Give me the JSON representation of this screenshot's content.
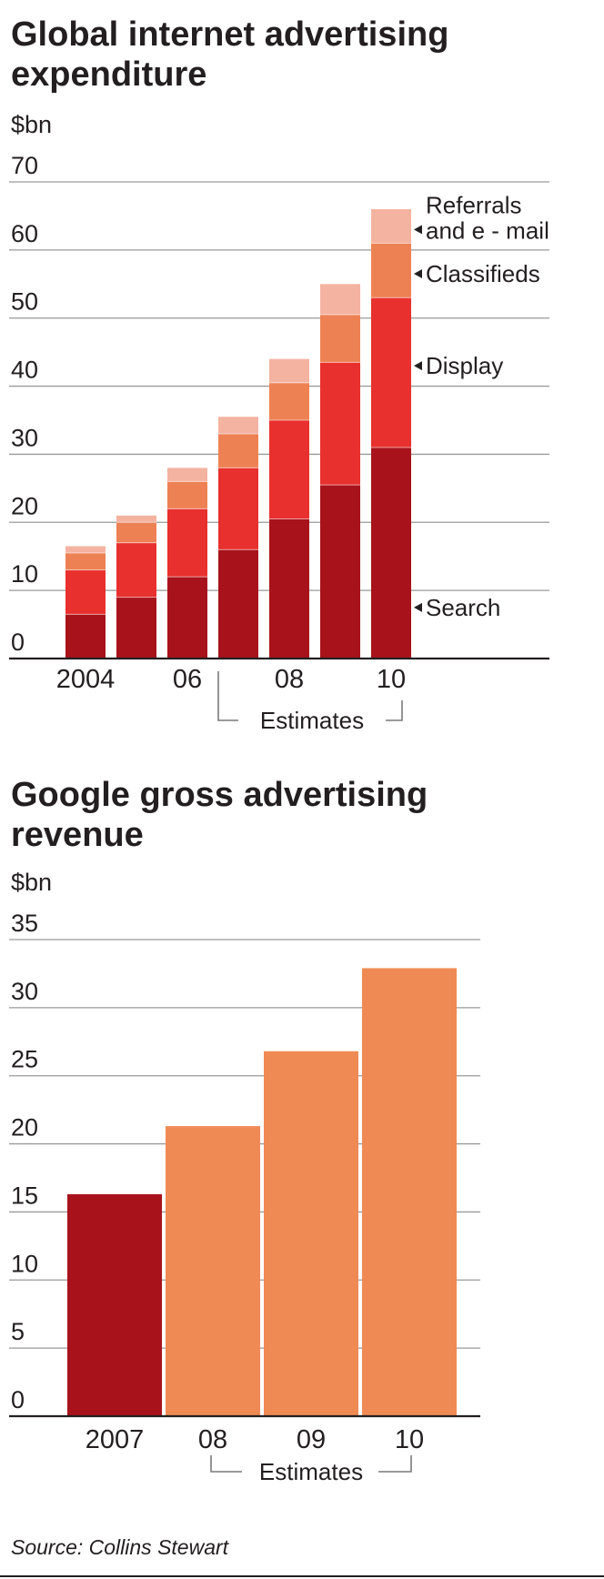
{
  "chart_data": [
    {
      "type": "bar",
      "stacked": true,
      "title": "Global internet advertising expenditure",
      "ylabel": "$bn",
      "ylim": [
        0,
        70
      ],
      "yticks": [
        0,
        10,
        20,
        30,
        40,
        50,
        60,
        70
      ],
      "grid": true,
      "categories": [
        "2004",
        "2005",
        "2006",
        "2007",
        "2008",
        "2009",
        "2010"
      ],
      "tick_labels": [
        "2004",
        "",
        "06",
        "",
        "08",
        "",
        "10"
      ],
      "estimates_label": "Estimates",
      "estimates_from": "2007",
      "series": [
        {
          "name": "Search",
          "color": "#a8131b",
          "values": [
            6.5,
            9,
            12,
            16,
            20.5,
            25.5,
            31
          ]
        },
        {
          "name": "Display",
          "color": "#e8302e",
          "values": [
            6.5,
            8,
            10,
            12,
            14.5,
            18,
            22
          ]
        },
        {
          "name": "Classifieds",
          "color": "#ee8154",
          "values": [
            2.5,
            3,
            4,
            5,
            5.5,
            7,
            8
          ]
        },
        {
          "name": "Referrals and e - mail",
          "color": "#f4b3a1",
          "values": [
            1,
            1,
            2,
            2.5,
            3.5,
            4.5,
            5
          ]
        }
      ]
    },
    {
      "type": "bar",
      "title": "Google gross advertising revenue",
      "ylabel": "$bn",
      "ylim": [
        0,
        35
      ],
      "yticks": [
        0,
        5,
        10,
        15,
        20,
        25,
        30,
        35
      ],
      "grid": true,
      "categories": [
        "2007",
        "08",
        "09",
        "10"
      ],
      "values": [
        16.3,
        21.3,
        26.8,
        32.9
      ],
      "colors": [
        "#a8131b",
        "#ef8a55",
        "#ef8a55",
        "#ef8a55"
      ],
      "estimates_label": "Estimates",
      "estimates_from": "08"
    }
  ],
  "source": "Source: Collins Stewart",
  "colors": {
    "text": "#231f20",
    "grid": "#9a9a9a",
    "background": "#ffffff"
  }
}
